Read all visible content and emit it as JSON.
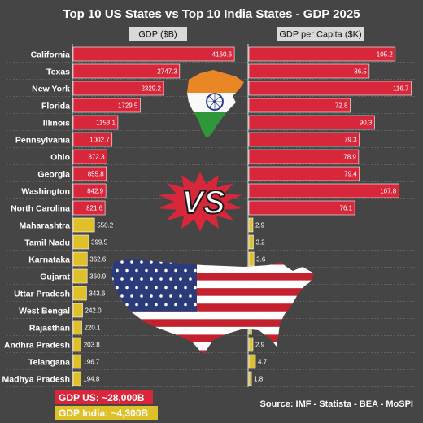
{
  "chart_data": {
    "type": "bar",
    "title": "Top 10 US States vs Top 10 India States - GDP 2025",
    "panels": [
      {
        "header": "GDP ($B)",
        "key": "gdp"
      },
      {
        "header": "GDP per Capita ($K)",
        "key": "gdp_per_capita"
      }
    ],
    "series": [
      {
        "group": "US",
        "color": "#d8263a",
        "states": [
          "California",
          "Texas",
          "New York",
          "Florida",
          "Illinois",
          "Pennsylvania",
          "Ohio",
          "Georgia",
          "Washington",
          "North Carolina"
        ],
        "gdp": [
          4160.6,
          2747.3,
          2329.2,
          1729.5,
          1153.1,
          1002.7,
          872.3,
          855.8,
          842.9,
          821.6
        ],
        "gdp_per_capita": [
          105.2,
          86.5,
          116.7,
          72.8,
          90.3,
          79.3,
          78.9,
          79.4,
          107.8,
          76.1
        ]
      },
      {
        "group": "India",
        "color": "#e0c028",
        "states": [
          "Maharashtra",
          "Tamil Nadu",
          "Karnataka",
          "Gujarat",
          "Uttar Pradesh",
          "West Bengal",
          "Rajasthan",
          "Andhra Pradesh",
          "Telangana",
          "Madhya Pradesh"
        ],
        "gdp": [
          550.2,
          399.5,
          362.6,
          360.9,
          343.6,
          242.0,
          220.1,
          203.8,
          196.7,
          194.8
        ],
        "gdp_per_capita": [
          2.9,
          3.2,
          3.6,
          3.6,
          1.3,
          1.9,
          2.0,
          2.9,
          4.7,
          1.8
        ]
      }
    ],
    "value_labels_gdp": [
      "4160.6",
      "2747.3",
      "2329.2",
      "1729.5",
      "1153.1",
      "1002.7",
      "872.3",
      "855.8",
      "842.9",
      "821.6",
      "550.2",
      "399.5",
      "362.6",
      "360.9",
      "343.6",
      "242.0",
      "220.1",
      "203.8",
      "196.7",
      "194.8"
    ],
    "value_labels_pc": [
      "105.2",
      "86.5",
      "116.7",
      "72.8",
      "90.3",
      "79.3",
      "78.9",
      "79.4",
      "107.8",
      "76.1",
      "2.9",
      "3.2",
      "3.6",
      "3.6",
      "1.3",
      "1.9",
      "2.0",
      "2.9",
      "4.7",
      "1.8"
    ],
    "legend": [
      {
        "label": "GDP US: ~28,000B",
        "color": "#d8263a"
      },
      {
        "label": "GDP India: ~4,300B",
        "color": "#e0c028"
      }
    ],
    "source": "Source: IMF - Statista - BEA - MoSPI",
    "vs_label": "VS",
    "grid": true
  },
  "colors": {
    "background": "#454545",
    "us_bar": "#d8263a",
    "india_bar": "#e0c028",
    "header_bg": "#d9d9d9",
    "grid": "#6a6a6a"
  },
  "decorations": [
    "india-map-flag",
    "usa-map-flag",
    "vs-burst"
  ]
}
